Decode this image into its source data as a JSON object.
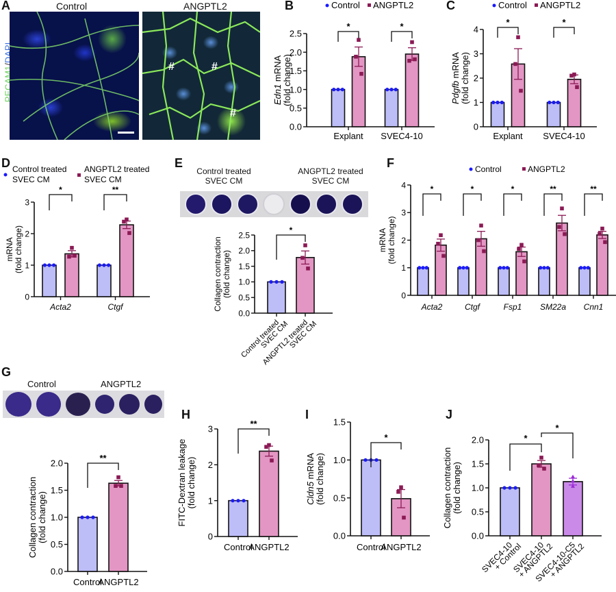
{
  "colors": {
    "control_fill": "#bdbdf8",
    "angptl2_fill": "#e396c3",
    "c5_fill": "#c98ae8",
    "control_point": "#1a1aff",
    "angptl2_point": "#8b1a55",
    "c5_point": "#9a2ad6",
    "axis": "#111111"
  },
  "panel_A": {
    "label": "A",
    "titles": [
      "Control",
      "ANGPTL2"
    ],
    "y_label_pecam": "PECAM1",
    "y_label_sep": "/",
    "y_label_dapi": "DAPI",
    "markers": [
      "#",
      "#",
      "#"
    ]
  },
  "panel_E_images": {
    "label_control": [
      "Control treated",
      "SVEC CM"
    ],
    "label_angptl2": [
      "ANGPTL2 treated",
      "SVEC CM"
    ]
  },
  "panel_G_images": {
    "label_control": "Control",
    "label_angptl2": "ANGPTL2"
  },
  "chart_data": [
    {
      "panel": "B",
      "type": "bar",
      "title": "",
      "legend": [
        "Control",
        "ANGPTL2"
      ],
      "ylabel_italic": "Edn1",
      "ylabel": " mRNA",
      "ylabel2": "(fold change)",
      "categories": [
        "Explant",
        "SVEC4-10"
      ],
      "series": [
        {
          "name": "Control",
          "values": [
            1.0,
            1.0
          ],
          "points": [
            [
              1,
              1,
              1
            ],
            [
              1,
              1,
              1
            ]
          ]
        },
        {
          "name": "ANGPTL2",
          "values": [
            1.88,
            1.95
          ],
          "sem": [
            0.26,
            0.17
          ],
          "points": [
            [
              2.33,
              1.88,
              1.42
            ],
            [
              2.27,
              1.77,
              1.81
            ]
          ]
        }
      ],
      "ylim": [
        0,
        2.5
      ],
      "yticks": [
        "0.0",
        "0.5",
        "1.0",
        "1.5",
        "2.0",
        "2.5"
      ],
      "significance": [
        "*",
        "*"
      ]
    },
    {
      "panel": "C",
      "type": "bar",
      "legend": [
        "Control",
        "ANGPTL2"
      ],
      "ylabel_italic": "Pdgfb",
      "ylabel": " mRNA",
      "ylabel2": "(fold change)",
      "categories": [
        "Explant",
        "SVEC4-10"
      ],
      "series": [
        {
          "name": "Control",
          "values": [
            1.0,
            1.0
          ],
          "points": [
            [
              1,
              1,
              1
            ],
            [
              1,
              1,
              1
            ]
          ]
        },
        {
          "name": "ANGPTL2",
          "values": [
            2.58,
            1.95
          ],
          "sem": [
            0.63,
            0.18
          ],
          "points": [
            [
              3.68,
              2.58,
              1.48
            ],
            [
              2.15,
              2.1,
              1.63
            ]
          ]
        }
      ],
      "ylim": [
        0,
        4
      ],
      "yticks": [
        "0",
        "1",
        "2",
        "3",
        "4"
      ],
      "significance": [
        "*",
        "*"
      ]
    },
    {
      "panel": "D",
      "type": "bar",
      "legend": [
        "Control treated SVEC CM",
        "ANGPTL2 treated SVEC CM"
      ],
      "legend_lines": [
        [
          "Control treated",
          "SVEC CM"
        ],
        [
          "ANGPTL2 treated",
          "SVEC CM"
        ]
      ],
      "ylabel": "mRNA",
      "ylabel2": "(fold change)",
      "categories": [
        "Acta2",
        "Ctgf"
      ],
      "series": [
        {
          "name": "Control treated SVEC CM",
          "values": [
            1.0,
            1.0
          ],
          "points": [
            [
              1,
              1,
              1
            ],
            [
              1,
              1,
              1
            ]
          ]
        },
        {
          "name": "ANGPTL2 treated SVEC CM",
          "values": [
            1.36,
            2.28
          ],
          "sem": [
            0.1,
            0.12
          ],
          "points": [
            [
              1.55,
              1.27,
              1.3
            ],
            [
              2.45,
              2.38,
              2.02
            ]
          ]
        }
      ],
      "ylim": [
        0,
        3
      ],
      "yticks": [
        "0",
        "1",
        "2",
        "3"
      ],
      "significance": [
        "*",
        "**"
      ]
    },
    {
      "panel": "E",
      "type": "bar",
      "ylabel": "Collagen contraction",
      "ylabel2": "(fold change)",
      "categories": [
        "Control treated SVEC CM",
        "ANGPTL2 treated SVEC CM"
      ],
      "category_lines": [
        [
          "Control treated",
          "SVEC CM"
        ],
        [
          "ANGPTL2 treated",
          "SVEC CM"
        ]
      ],
      "values": [
        1.0,
        1.78
      ],
      "sem": [
        0,
        0.21
      ],
      "points": [
        [
          1,
          1,
          1
        ],
        [
          2.17,
          1.77,
          1.43
        ]
      ],
      "ylim": [
        0,
        2.5
      ],
      "yticks": [
        "0.0",
        "0.5",
        "1.0",
        "1.5",
        "2.0",
        "2.5"
      ],
      "significance": [
        "*"
      ]
    },
    {
      "panel": "F",
      "type": "bar",
      "legend": [
        "Control",
        "ANGPTL2"
      ],
      "ylabel": "mRNA",
      "ylabel2": "(fold change)",
      "categories": [
        "Acta2",
        "Ctgf",
        "Fsp1",
        "SM22a",
        "Cnn1"
      ],
      "series": [
        {
          "name": "Control",
          "values": [
            1,
            1,
            1,
            1,
            1
          ],
          "points": [
            [
              1,
              1,
              1
            ],
            [
              1,
              1,
              1
            ],
            [
              1,
              1,
              1
            ],
            [
              1,
              1,
              1
            ],
            [
              1,
              1,
              1
            ]
          ]
        },
        {
          "name": "ANGPTL2",
          "values": [
            1.82,
            2.05,
            1.58,
            2.62,
            2.19
          ],
          "sem": [
            0.22,
            0.27,
            0.17,
            0.28,
            0.13
          ],
          "points": [
            [
              2.18,
              1.87,
              1.43
            ],
            [
              2.53,
              2.0,
              1.6
            ],
            [
              1.83,
              1.68,
              1.23
            ],
            [
              3.15,
              2.48,
              2.22
            ],
            [
              2.42,
              2.23,
              1.93
            ]
          ]
        }
      ],
      "ylim": [
        0,
        4
      ],
      "yticks": [
        "0",
        "1",
        "2",
        "3",
        "4"
      ],
      "significance": [
        "*",
        "*",
        "*",
        "**",
        "**"
      ]
    },
    {
      "panel": "G",
      "type": "bar",
      "ylabel": "Collagen contraction",
      "ylabel2": "(fold change)",
      "categories": [
        "Control",
        "ANGPTL2"
      ],
      "values": [
        1.0,
        1.63
      ],
      "sem": [
        0,
        0.05
      ],
      "points": [
        [
          1,
          1,
          1
        ],
        [
          1.74,
          1.58,
          1.58
        ]
      ],
      "ylim": [
        0,
        2.0
      ],
      "yticks": [
        "0.0",
        "0.5",
        "1.0",
        "1.5",
        "2.0"
      ],
      "significance": [
        "**"
      ]
    },
    {
      "panel": "H",
      "type": "bar",
      "ylabel": "FITC-Dextran leakage",
      "ylabel2": "(fold change)",
      "categories": [
        "Control",
        "ANGPTL2"
      ],
      "values": [
        1.0,
        2.38
      ],
      "sem": [
        0,
        0.14
      ],
      "points": [
        [
          1,
          1,
          1
        ],
        [
          2.55,
          2.5,
          2.12
        ]
      ],
      "ylim": [
        0,
        3
      ],
      "yticks": [
        "0",
        "1",
        "2",
        "3"
      ],
      "significance": [
        "**"
      ]
    },
    {
      "panel": "I",
      "type": "bar",
      "ylabel_italic": "Cldn5",
      "ylabel": " mRNA",
      "ylabel2": "(fold change)",
      "categories": [
        "Control",
        "ANGPTL2"
      ],
      "values": [
        1.0,
        0.49
      ],
      "sem": [
        0,
        0.12
      ],
      "points": [
        [
          1,
          1,
          1
        ],
        [
          0.64,
          0.58,
          0.24
        ]
      ],
      "ylim": [
        0,
        1.5
      ],
      "yticks": [
        "0.0",
        "0.5",
        "1.0",
        "1.5"
      ],
      "significance": [
        "*"
      ]
    },
    {
      "panel": "J",
      "type": "bar",
      "ylabel": "Collagen contraction",
      "ylabel2": "(fold change)",
      "categories": [
        "SVEC4-10 + Control",
        "SVEC4-10 + ANGPTL2",
        "SVEC4-10-C5 + ANGPTL2"
      ],
      "category_lines": [
        [
          "SVEC4-10",
          "+ Control"
        ],
        [
          "SVEC4-10",
          "+ ANGPTL2"
        ],
        [
          "SVEC4-10-C5",
          "+ ANGPTL2"
        ]
      ],
      "values": [
        1.0,
        1.5,
        1.13
      ],
      "sem": [
        0,
        0.07,
        0.07
      ],
      "points": [
        [
          1,
          1,
          1
        ],
        [
          1.63,
          1.47,
          1.4
        ],
        [
          1.23,
          1.14,
          1.03
        ]
      ],
      "ylim": [
        0,
        2.0
      ],
      "yticks": [
        "0.0",
        "0.5",
        "1.0",
        "1.5",
        "2.0"
      ],
      "significance": [
        "*",
        "*"
      ]
    }
  ]
}
